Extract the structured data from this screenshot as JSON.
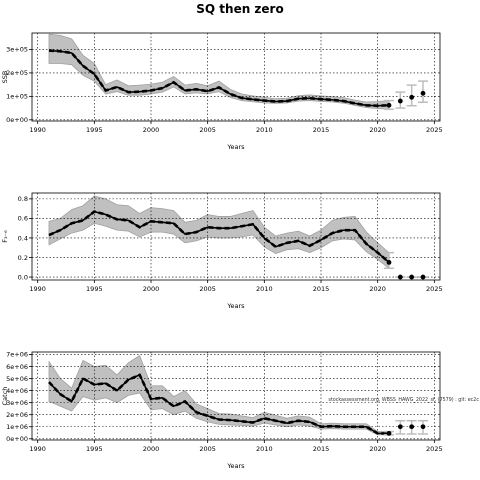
{
  "page": {
    "title": "SQ then zero",
    "watermark": "stockassessment.org, WBSS_HAWG_2022_sf, (7579) : git: ec2c"
  },
  "colors": {
    "band": "#c0c0c0",
    "band_edge": "#a0a0a0",
    "line": "#000000",
    "proj_bar": "#bdbdbd"
  },
  "chart_data": [
    {
      "type": "line",
      "name": "ssb",
      "title": "",
      "xlabel": "Years",
      "ylabel": "SSB",
      "xlim": [
        1989.5,
        2025.5
      ],
      "ylim": [
        -5000,
        370000
      ],
      "grid": true,
      "xticks": [
        1990,
        1995,
        2000,
        2005,
        2010,
        2015,
        2020,
        2025
      ],
      "xtick_labels": [
        "1990",
        "1995",
        "2000",
        "2005",
        "2010",
        "2015",
        "2020",
        "2025"
      ],
      "yticks": [
        0,
        100000,
        200000,
        300000
      ],
      "ytick_labels": [
        "0e+00",
        "1e+05",
        "2e+05",
        "3e+05"
      ],
      "years": [
        1991,
        1992,
        1993,
        1994,
        1995,
        1996,
        1997,
        1998,
        1999,
        2000,
        2001,
        2002,
        2003,
        2004,
        2005,
        2006,
        2007,
        2008,
        2009,
        2010,
        2011,
        2012,
        2013,
        2014,
        2015,
        2016,
        2017,
        2018,
        2019,
        2020,
        2021
      ],
      "estimate": [
        295000,
        292000,
        285000,
        230000,
        195000,
        125000,
        140000,
        118000,
        120000,
        125000,
        135000,
        160000,
        125000,
        130000,
        122000,
        138000,
        110000,
        93000,
        87000,
        82000,
        78000,
        80000,
        90000,
        92000,
        88000,
        85000,
        80000,
        70000,
        62000,
        60000,
        62000
      ],
      "lower": [
        240000,
        240000,
        235000,
        190000,
        165000,
        110000,
        120000,
        105000,
        105000,
        110000,
        118000,
        140000,
        110000,
        115000,
        110000,
        120000,
        95000,
        82000,
        77000,
        72000,
        70000,
        72000,
        80000,
        82000,
        78000,
        76000,
        71000,
        61000,
        52000,
        48000,
        45000
      ],
      "upper": [
        365000,
        360000,
        345000,
        275000,
        240000,
        150000,
        170000,
        145000,
        148000,
        152000,
        160000,
        185000,
        148000,
        155000,
        145000,
        165000,
        130000,
        110000,
        102000,
        96000,
        90000,
        92000,
        103000,
        106000,
        102000,
        99000,
        94000,
        84000,
        76000,
        78000,
        82000
      ],
      "projection": {
        "years": [
          2021,
          2022,
          2023,
          2024
        ],
        "median": [
          62000,
          80000,
          96000,
          113000
        ],
        "lower": [
          45000,
          50000,
          60000,
          75000
        ],
        "upper": [
          82000,
          118000,
          148000,
          165000
        ]
      }
    },
    {
      "type": "line",
      "name": "fbar",
      "title": "",
      "xlabel": "Years",
      "ylabel": "F₃₋₆",
      "xlim": [
        1989.5,
        2025.5
      ],
      "ylim": [
        -0.03,
        0.86
      ],
      "grid": true,
      "xticks": [
        1990,
        1995,
        2000,
        2005,
        2010,
        2015,
        2020,
        2025
      ],
      "xtick_labels": [
        "1990",
        "1995",
        "2000",
        "2005",
        "2010",
        "2015",
        "2020",
        "2025"
      ],
      "yticks": [
        0,
        0.2,
        0.4,
        0.6,
        0.8
      ],
      "ytick_labels": [
        "0.0",
        "0.2",
        "0.4",
        "0.6",
        "0.8"
      ],
      "years": [
        1991,
        1992,
        1993,
        1994,
        1995,
        1996,
        1997,
        1998,
        1999,
        2000,
        2001,
        2002,
        2003,
        2004,
        2005,
        2006,
        2007,
        2008,
        2009,
        2010,
        2011,
        2012,
        2013,
        2014,
        2015,
        2016,
        2017,
        2018,
        2019,
        2020,
        2021
      ],
      "estimate": [
        0.43,
        0.48,
        0.55,
        0.58,
        0.67,
        0.64,
        0.59,
        0.58,
        0.51,
        0.57,
        0.56,
        0.55,
        0.44,
        0.46,
        0.51,
        0.5,
        0.5,
        0.52,
        0.54,
        0.4,
        0.31,
        0.35,
        0.37,
        0.32,
        0.38,
        0.45,
        0.48,
        0.48,
        0.34,
        0.25,
        0.15
      ],
      "lower": [
        0.33,
        0.39,
        0.45,
        0.48,
        0.55,
        0.52,
        0.48,
        0.47,
        0.41,
        0.46,
        0.46,
        0.44,
        0.35,
        0.37,
        0.41,
        0.4,
        0.4,
        0.41,
        0.43,
        0.31,
        0.24,
        0.28,
        0.29,
        0.25,
        0.3,
        0.37,
        0.39,
        0.38,
        0.26,
        0.18,
        0.09
      ],
      "upper": [
        0.57,
        0.6,
        0.69,
        0.73,
        0.83,
        0.8,
        0.74,
        0.73,
        0.65,
        0.71,
        0.7,
        0.68,
        0.56,
        0.58,
        0.64,
        0.62,
        0.62,
        0.65,
        0.68,
        0.51,
        0.42,
        0.45,
        0.47,
        0.42,
        0.48,
        0.58,
        0.61,
        0.62,
        0.46,
        0.35,
        0.25
      ],
      "projection": {
        "years": [
          2021,
          2022,
          2023,
          2024
        ],
        "median": [
          0.15,
          0.0,
          0.0,
          0.0
        ],
        "lower": [
          0.09,
          0.0,
          0.0,
          0.0
        ],
        "upper": [
          0.25,
          0.0,
          0.0,
          0.0
        ]
      }
    },
    {
      "type": "line",
      "name": "catch",
      "title": "",
      "xlabel": "Years",
      "ylabel": "Catch",
      "xlim": [
        1989.5,
        2025.5
      ],
      "ylim": [
        -100000,
        7200000
      ],
      "grid": true,
      "xticks": [
        1990,
        1995,
        2000,
        2005,
        2010,
        2015,
        2020,
        2025
      ],
      "xtick_labels": [
        "1990",
        "1995",
        "2000",
        "2005",
        "2010",
        "2015",
        "2020",
        "2025"
      ],
      "yticks": [
        0,
        1000000,
        2000000,
        3000000,
        4000000,
        5000000,
        6000000,
        7000000
      ],
      "ytick_labels": [
        "0e+00",
        "1e+06",
        "2e+06",
        "3e+06",
        "4e+06",
        "5e+06",
        "6e+06",
        "7e+06"
      ],
      "years": [
        1991,
        1992,
        1993,
        1994,
        1995,
        1996,
        1997,
        1998,
        1999,
        2000,
        2001,
        2002,
        2003,
        2004,
        2005,
        2006,
        2007,
        2008,
        2009,
        2010,
        2011,
        2012,
        2013,
        2014,
        2015,
        2016,
        2017,
        2018,
        2019,
        2020,
        2021
      ],
      "estimate": [
        4700000,
        3700000,
        3100000,
        5000000,
        4500000,
        4600000,
        4000000,
        4900000,
        5300000,
        3300000,
        3400000,
        2700000,
        3100000,
        2200000,
        1900000,
        1600000,
        1550000,
        1450000,
        1350000,
        1700000,
        1500000,
        1300000,
        1500000,
        1400000,
        1000000,
        1050000,
        1000000,
        1000000,
        1000000,
        450000,
        450000
      ],
      "lower": [
        3100000,
        2700000,
        2300000,
        3500000,
        3200000,
        3400000,
        3000000,
        3600000,
        3800000,
        2400000,
        2500000,
        2000000,
        2300000,
        1700000,
        1400000,
        1200000,
        1150000,
        1100000,
        1050000,
        1300000,
        1150000,
        1000000,
        1150000,
        1050000,
        800000,
        850000,
        800000,
        800000,
        800000,
        330000,
        330000
      ],
      "upper": [
        6400000,
        5000000,
        4200000,
        6500000,
        6000000,
        6100000,
        5300000,
        6300000,
        6900000,
        4400000,
        4400000,
        3500000,
        4000000,
        2900000,
        2500000,
        2100000,
        2050000,
        1900000,
        1750000,
        2200000,
        1950000,
        1700000,
        1900000,
        1800000,
        1250000,
        1300000,
        1250000,
        1250000,
        1250000,
        600000,
        600000
      ],
      "projection": {
        "years": [
          2021,
          2022,
          2023,
          2024
        ],
        "median": [
          450000,
          1000000,
          1000000,
          1000000
        ],
        "lower": [
          330000,
          400000,
          400000,
          400000
        ],
        "upper": [
          600000,
          1500000,
          1500000,
          1500000
        ]
      }
    }
  ]
}
